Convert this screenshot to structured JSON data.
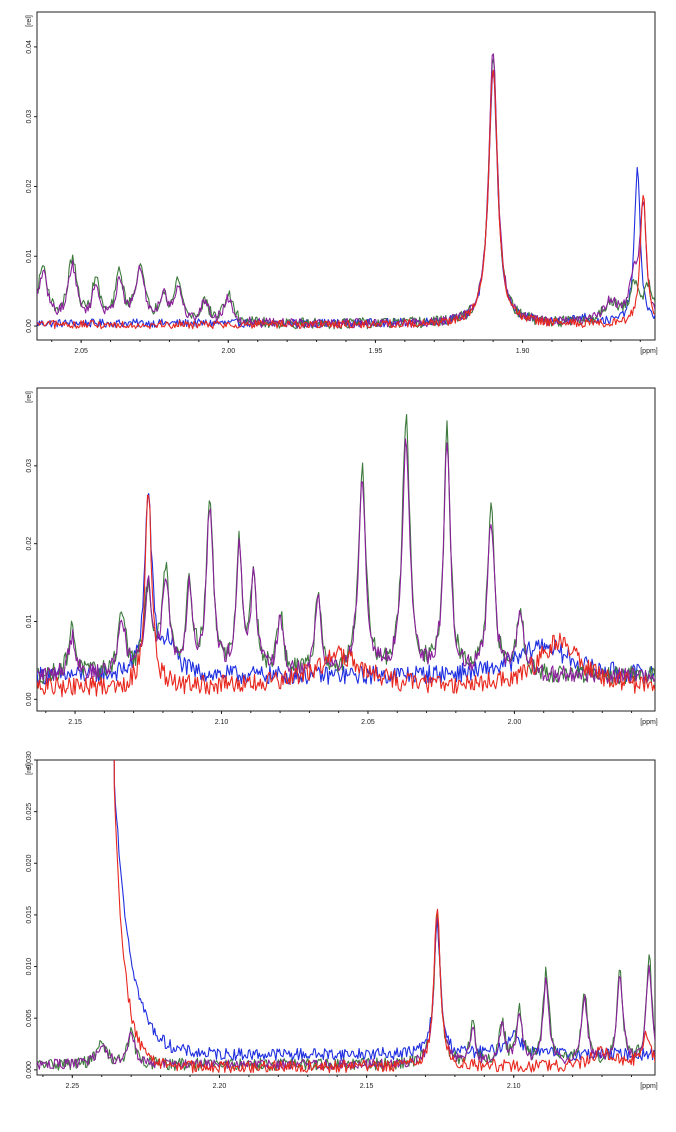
{
  "colors": {
    "blue": "#1f2fe0",
    "green": "#3d7a3d",
    "purple": "#8b1f9c",
    "red": "#e8281e"
  },
  "chart_data": [
    {
      "type": "line",
      "xlabel": "[ppm]",
      "ylabel": "[rel]",
      "xlim": [
        2.065,
        1.855
      ],
      "ylim": [
        -0.002,
        0.045
      ],
      "x_reversed": true,
      "x_ticks": [
        "2.05",
        "2.00",
        "1.95",
        "1.90"
      ],
      "x_tick_values": [
        2.05,
        2.0,
        1.95,
        1.9
      ],
      "y_ticks": [
        "0.00",
        "0.01",
        "0.02",
        "0.03",
        "0.04"
      ],
      "y_tick_values": [
        0.0,
        0.01,
        0.02,
        0.03,
        0.04
      ],
      "series": [
        {
          "color": "blue",
          "noise": 0.0006,
          "baseline": 0.0004,
          "peaks": [
            [
              1.91,
              0.036,
              0.0018
            ],
            [
              1.861,
              0.022,
              0.0012
            ],
            [
              1.88,
              0.0008,
              0.003
            ]
          ]
        },
        {
          "color": "green",
          "noise": 0.0008,
          "baseline": 0.0003,
          "peaks": [
            [
              2.063,
              0.008,
              0.002
            ],
            [
              2.053,
              0.009,
              0.0018
            ],
            [
              2.045,
              0.006,
              0.0015
            ],
            [
              2.037,
              0.007,
              0.0015
            ],
            [
              2.03,
              0.008,
              0.0018
            ],
            [
              2.022,
              0.004,
              0.0015
            ],
            [
              2.017,
              0.006,
              0.0015
            ],
            [
              2.008,
              0.003,
              0.0015
            ],
            [
              2.0,
              0.004,
              0.0018
            ],
            [
              1.91,
              0.038,
              0.0018
            ],
            [
              1.87,
              0.003,
              0.003
            ],
            [
              1.862,
              0.005,
              0.002
            ],
            [
              1.857,
              0.005,
              0.002
            ]
          ]
        },
        {
          "color": "purple",
          "noise": 0.0007,
          "baseline": 0.0003,
          "peaks": [
            [
              2.063,
              0.007,
              0.002
            ],
            [
              2.053,
              0.008,
              0.0018
            ],
            [
              2.045,
              0.005,
              0.0015
            ],
            [
              2.037,
              0.006,
              0.0015
            ],
            [
              2.03,
              0.0075,
              0.0018
            ],
            [
              2.022,
              0.004,
              0.0015
            ],
            [
              2.017,
              0.005,
              0.0015
            ],
            [
              2.008,
              0.003,
              0.0015
            ],
            [
              2.0,
              0.0035,
              0.0018
            ],
            [
              1.91,
              0.039,
              0.0018
            ],
            [
              1.87,
              0.003,
              0.003
            ],
            [
              1.862,
              0.006,
              0.002
            ],
            [
              1.859,
              0.016,
              0.0012
            ]
          ]
        },
        {
          "color": "red",
          "noise": 0.0006,
          "baseline": 0.0002,
          "peaks": [
            [
              1.91,
              0.037,
              0.0018
            ],
            [
              1.859,
              0.019,
              0.0012
            ]
          ]
        }
      ]
    },
    {
      "type": "line",
      "xlabel": "[ppm]",
      "ylabel": "[rel]",
      "xlim": [
        2.163,
        1.952
      ],
      "ylim": [
        -0.0015,
        0.04
      ],
      "x_reversed": true,
      "x_ticks": [
        "2.15",
        "2.10",
        "2.05",
        "2.00"
      ],
      "x_tick_values": [
        2.15,
        2.1,
        2.05,
        2.0
      ],
      "y_ticks": [
        "0.00",
        "0.01",
        "0.02",
        "0.03"
      ],
      "y_tick_values": [
        0.0,
        0.01,
        0.02,
        0.03
      ],
      "series": [
        {
          "color": "blue",
          "noise": 0.0012,
          "baseline": 0.003,
          "peaks": [
            [
              2.125,
              0.023,
              0.0015
            ],
            [
              2.118,
              0.004,
              0.003
            ],
            [
              1.99,
              0.004,
              0.01
            ]
          ]
        },
        {
          "color": "green",
          "noise": 0.0012,
          "baseline": 0.003,
          "peaks": [
            [
              2.151,
              0.006,
              0.0015
            ],
            [
              2.134,
              0.008,
              0.0015
            ],
            [
              2.125,
              0.011,
              0.0015
            ],
            [
              2.119,
              0.013,
              0.0015
            ],
            [
              2.111,
              0.012,
              0.0012
            ],
            [
              2.104,
              0.022,
              0.0014
            ],
            [
              2.094,
              0.017,
              0.0012
            ],
            [
              2.089,
              0.013,
              0.0012
            ],
            [
              2.08,
              0.008,
              0.0012
            ],
            [
              2.067,
              0.011,
              0.0012
            ],
            [
              2.052,
              0.026,
              0.0015
            ],
            [
              2.037,
              0.033,
              0.0015
            ],
            [
              2.023,
              0.031,
              0.0013
            ],
            [
              2.008,
              0.021,
              0.0014
            ],
            [
              1.998,
              0.008,
              0.0015
            ]
          ]
        },
        {
          "color": "purple",
          "noise": 0.0011,
          "baseline": 0.003,
          "peaks": [
            [
              2.151,
              0.005,
              0.0015
            ],
            [
              2.134,
              0.007,
              0.0015
            ],
            [
              2.125,
              0.011,
              0.0015
            ],
            [
              2.119,
              0.012,
              0.0015
            ],
            [
              2.111,
              0.011,
              0.0012
            ],
            [
              2.104,
              0.021,
              0.0014
            ],
            [
              2.094,
              0.016,
              0.0012
            ],
            [
              2.089,
              0.012,
              0.0012
            ],
            [
              2.08,
              0.007,
              0.0012
            ],
            [
              2.067,
              0.01,
              0.0012
            ],
            [
              2.052,
              0.025,
              0.0015
            ],
            [
              2.037,
              0.03,
              0.0015
            ],
            [
              2.023,
              0.03,
              0.0013
            ],
            [
              2.008,
              0.02,
              0.0014
            ],
            [
              1.998,
              0.007,
              0.0015
            ]
          ]
        },
        {
          "color": "red",
          "noise": 0.0013,
          "baseline": 0.0015,
          "peaks": [
            [
              2.125,
              0.026,
              0.0013
            ],
            [
              2.06,
              0.004,
              0.01
            ],
            [
              1.985,
              0.006,
              0.008
            ]
          ]
        }
      ]
    },
    {
      "type": "line",
      "xlabel": "[ppm]",
      "ylabel": "[rel]",
      "xlim": [
        2.262,
        2.052
      ],
      "ylim": [
        -0.0005,
        0.03
      ],
      "x_reversed": true,
      "x_ticks": [
        "2.25",
        "2.20",
        "2.15",
        "2.10"
      ],
      "x_tick_values": [
        2.25,
        2.2,
        2.15,
        2.1
      ],
      "y_ticks": [
        "0.000",
        "0.005",
        "0.010",
        "0.015",
        "0.020",
        "0.025",
        "0.030"
      ],
      "y_tick_values": [
        0.0,
        0.005,
        0.01,
        0.015,
        0.02,
        0.025,
        0.03
      ],
      "series": [
        {
          "color": "blue",
          "noise": 0.0006,
          "baseline": 0.0015,
          "tail": [
            2.236,
            0.028,
            0.0055
          ],
          "peaks": [
            [
              2.126,
              0.0125,
              0.0013
            ],
            [
              2.1,
              0.002,
              0.003
            ]
          ]
        },
        {
          "color": "green",
          "noise": 0.0006,
          "baseline": 0.0005,
          "peaks": [
            [
              2.24,
              0.002,
              0.002
            ],
            [
              2.23,
              0.003,
              0.0015
            ],
            [
              2.126,
              0.014,
              0.0013
            ],
            [
              2.114,
              0.004,
              0.001
            ],
            [
              2.104,
              0.004,
              0.0012
            ],
            [
              2.098,
              0.005,
              0.0012
            ],
            [
              2.089,
              0.009,
              0.0012
            ],
            [
              2.076,
              0.007,
              0.0012
            ],
            [
              2.064,
              0.009,
              0.0012
            ],
            [
              2.054,
              0.0105,
              0.0012
            ]
          ]
        },
        {
          "color": "purple",
          "noise": 0.0005,
          "baseline": 0.0005,
          "peaks": [
            [
              2.24,
              0.002,
              0.002
            ],
            [
              2.23,
              0.003,
              0.0015
            ],
            [
              2.126,
              0.0145,
              0.0013
            ],
            [
              2.114,
              0.0035,
              0.001
            ],
            [
              2.104,
              0.0035,
              0.0012
            ],
            [
              2.098,
              0.0045,
              0.0012
            ],
            [
              2.089,
              0.008,
              0.0012
            ],
            [
              2.076,
              0.0065,
              0.0012
            ],
            [
              2.064,
              0.0085,
              0.0012
            ],
            [
              2.054,
              0.0095,
              0.0012
            ]
          ]
        },
        {
          "color": "red",
          "noise": 0.0006,
          "baseline": 0.0003,
          "tail": [
            2.236,
            0.029,
            0.0035
          ],
          "peaks": [
            [
              2.126,
              0.0155,
              0.0013
            ],
            [
              2.07,
              0.0015,
              0.004
            ],
            [
              2.055,
              0.003,
              0.002
            ]
          ]
        }
      ]
    }
  ]
}
